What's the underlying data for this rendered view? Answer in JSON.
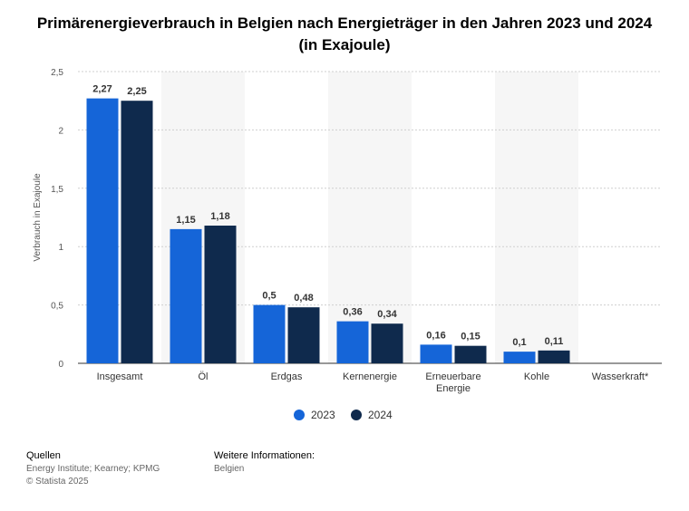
{
  "title": "Primärenergieverbrauch in Belgien nach Energieträger in den Jahren 2023 und 2024 (in Exajoule)",
  "colors": {
    "series_2023": "#1565d8",
    "series_2024": "#0f2a4d",
    "band": "#f6f6f6"
  },
  "chart_data": {
    "type": "bar",
    "title": "Primärenergieverbrauch in Belgien nach Energieträger in den Jahren 2023 und 2024 (in Exajoule)",
    "xlabel": "",
    "ylabel": "Verbrauch in Exajoule",
    "ylim": [
      0,
      2.5
    ],
    "yticks": [
      "0",
      "0,5",
      "1",
      "1,5",
      "2",
      "2,5"
    ],
    "categories": [
      [
        "Insgesamt"
      ],
      [
        "Öl"
      ],
      [
        "Erdgas"
      ],
      [
        "Kernenergie"
      ],
      [
        "Erneuerbare",
        "Energie"
      ],
      [
        "Kohle"
      ],
      [
        "Wasserkraft*"
      ]
    ],
    "series": [
      {
        "name": "2023",
        "values": [
          2.27,
          1.15,
          0.5,
          0.36,
          0.16,
          0.1,
          null
        ],
        "labels": [
          "2,27",
          "1,15",
          "0,5",
          "0,36",
          "0,16",
          "0,1",
          ""
        ]
      },
      {
        "name": "2024",
        "values": [
          2.25,
          1.18,
          0.48,
          0.34,
          0.15,
          0.11,
          null
        ],
        "labels": [
          "2,25",
          "1,18",
          "0,48",
          "0,34",
          "0,15",
          "0,11",
          ""
        ]
      }
    ],
    "legend": "bottom-center"
  },
  "footer": {
    "sources_heading": "Quellen",
    "sources_line": "Energy Institute; Kearney; KPMG",
    "copyright": "© Statista 2025",
    "info_heading": "Weitere Informationen:",
    "info_line": "Belgien"
  }
}
